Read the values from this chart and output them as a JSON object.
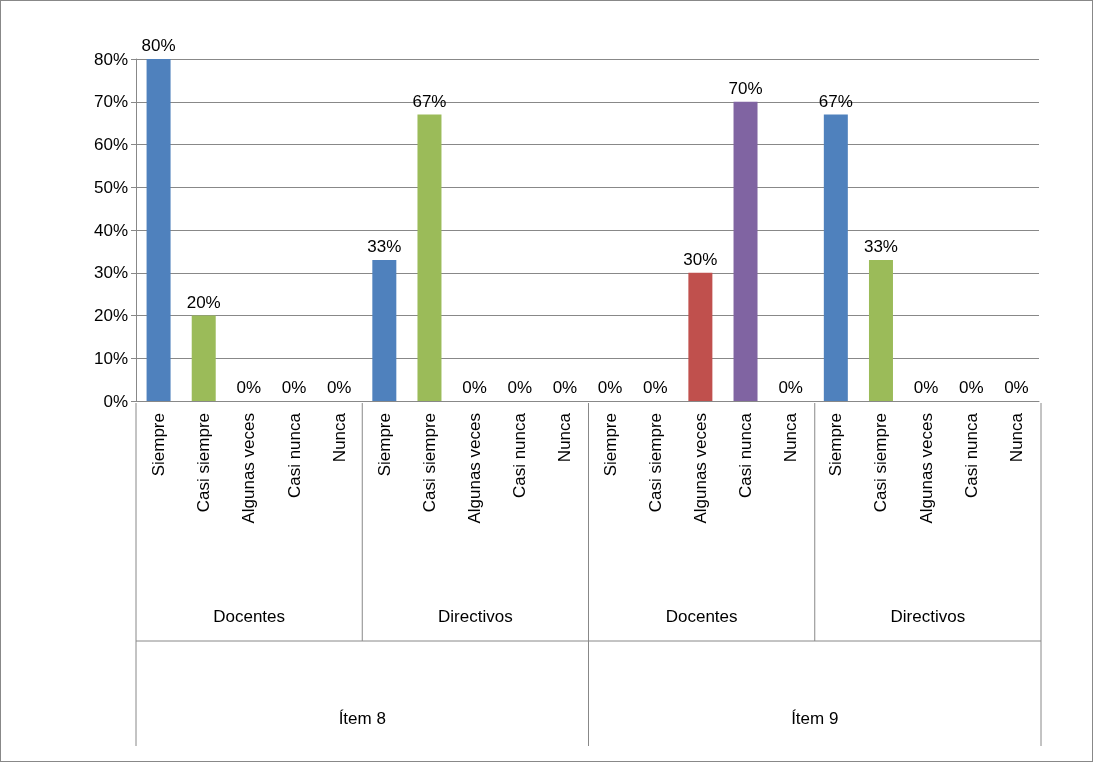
{
  "chart_data": {
    "type": "bar",
    "categories": [
      "Siempre",
      "Casi siempre",
      "Algunas veces",
      "Casi nunca",
      "Nunca",
      "Siempre",
      "Casi siempre",
      "Algunas veces",
      "Casi nunca",
      "Nunca",
      "Siempre",
      "Casi siempre",
      "Algunas veces",
      "Casi nunca",
      "Nunca",
      "Siempre",
      "Casi siempre",
      "Algunas veces",
      "Casi nunca",
      "Nunca"
    ],
    "values": [
      80,
      20,
      0,
      0,
      0,
      33,
      67,
      0,
      0,
      0,
      0,
      0,
      30,
      70,
      0,
      67,
      33,
      0,
      0,
      0
    ],
    "value_labels": [
      "80%",
      "20%",
      "0%",
      "0%",
      "0%",
      "33%",
      "67%",
      "0%",
      "0%",
      "0%",
      "0%",
      "0%",
      "30%",
      "70%",
      "0%",
      "67%",
      "33%",
      "0%",
      "0%",
      "0%"
    ],
    "colors": [
      "#4f81bd",
      "#9bbb59",
      "#c0504d",
      "#8064a2",
      "#f79646",
      "#4f81bd",
      "#9bbb59",
      "#c0504d",
      "#8064a2",
      "#f79646",
      "#4f81bd",
      "#9bbb59",
      "#c0504d",
      "#8064a2",
      "#f79646",
      "#4f81bd",
      "#9bbb59",
      "#c0504d",
      "#8064a2",
      "#f79646"
    ],
    "ylim": [
      0,
      80
    ],
    "yticks": [
      {
        "value": 0,
        "label": "0%"
      },
      {
        "value": 10,
        "label": "10%"
      },
      {
        "value": 20,
        "label": "20%"
      },
      {
        "value": 30,
        "label": "30%"
      },
      {
        "value": 40,
        "label": "40%"
      },
      {
        "value": 50,
        "label": "50%"
      },
      {
        "value": 60,
        "label": "60%"
      },
      {
        "value": 70,
        "label": "70%"
      },
      {
        "value": 80,
        "label": "80%"
      }
    ],
    "grid": true,
    "annotations": [
      "Docentes",
      "Directivos",
      "Docentes",
      "Directivos",
      "Ítem 8",
      "Ítem 9"
    ]
  }
}
